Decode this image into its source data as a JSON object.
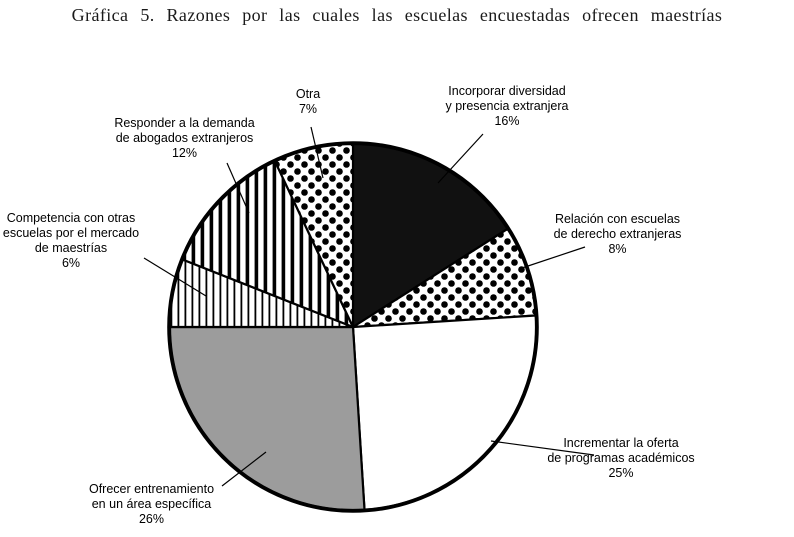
{
  "figure_caption": "Gráfica 5. Razones por las cuales las escuelas encuestadas ofrecen maestrías",
  "colors": {
    "black": "#111111",
    "gray": "#9c9c9c",
    "white": "#ffffff",
    "stroke": "#000000"
  },
  "chart_data": {
    "type": "pie",
    "title": "Gráfica 5. Razones por las cuales las escuelas encuestadas ofrecen maestrías",
    "direction": "clockwise",
    "start_angle_deg": 0,
    "total": 100,
    "legend_position": "none",
    "slices": [
      {
        "key": "incorporar",
        "name": "Incorporar diversidad y presencia extranjera",
        "value": 16,
        "pattern": "solid-black",
        "label": "Incorporar diversidad\ny presencia extranjera\n16%"
      },
      {
        "key": "relacion",
        "name": "Relación con escuelas de derecho extranjeras",
        "value": 8,
        "pattern": "dots",
        "label": "Relación con escuelas\nde derecho extranjeras\n8%"
      },
      {
        "key": "incrementar",
        "name": "Incrementar la oferta de programas académicos",
        "value": 25,
        "pattern": "white",
        "label": "Incrementar la oferta\nde programas académicos\n25%"
      },
      {
        "key": "ofrecer",
        "name": "Ofrecer entrenamiento en un área específica",
        "value": 26,
        "pattern": "gray",
        "label": "Ofrecer entrenamiento\nen un área específica\n26%"
      },
      {
        "key": "competencia",
        "name": "Competencia con otras escuelas por el mercado de maestrías",
        "value": 6,
        "pattern": "vlines-thin",
        "label": "Competencia con otras\nescuelas por el mercado\nde maestrías\n6%"
      },
      {
        "key": "responder",
        "name": "Responder a la demanda de abogados extranjeros",
        "value": 12,
        "pattern": "vlines-thick",
        "label": "Responder a la demanda\nde abogados extranjeros\n12%"
      },
      {
        "key": "otra",
        "name": "Otra",
        "value": 7,
        "pattern": "dots",
        "label": "Otra\n7%"
      }
    ]
  }
}
